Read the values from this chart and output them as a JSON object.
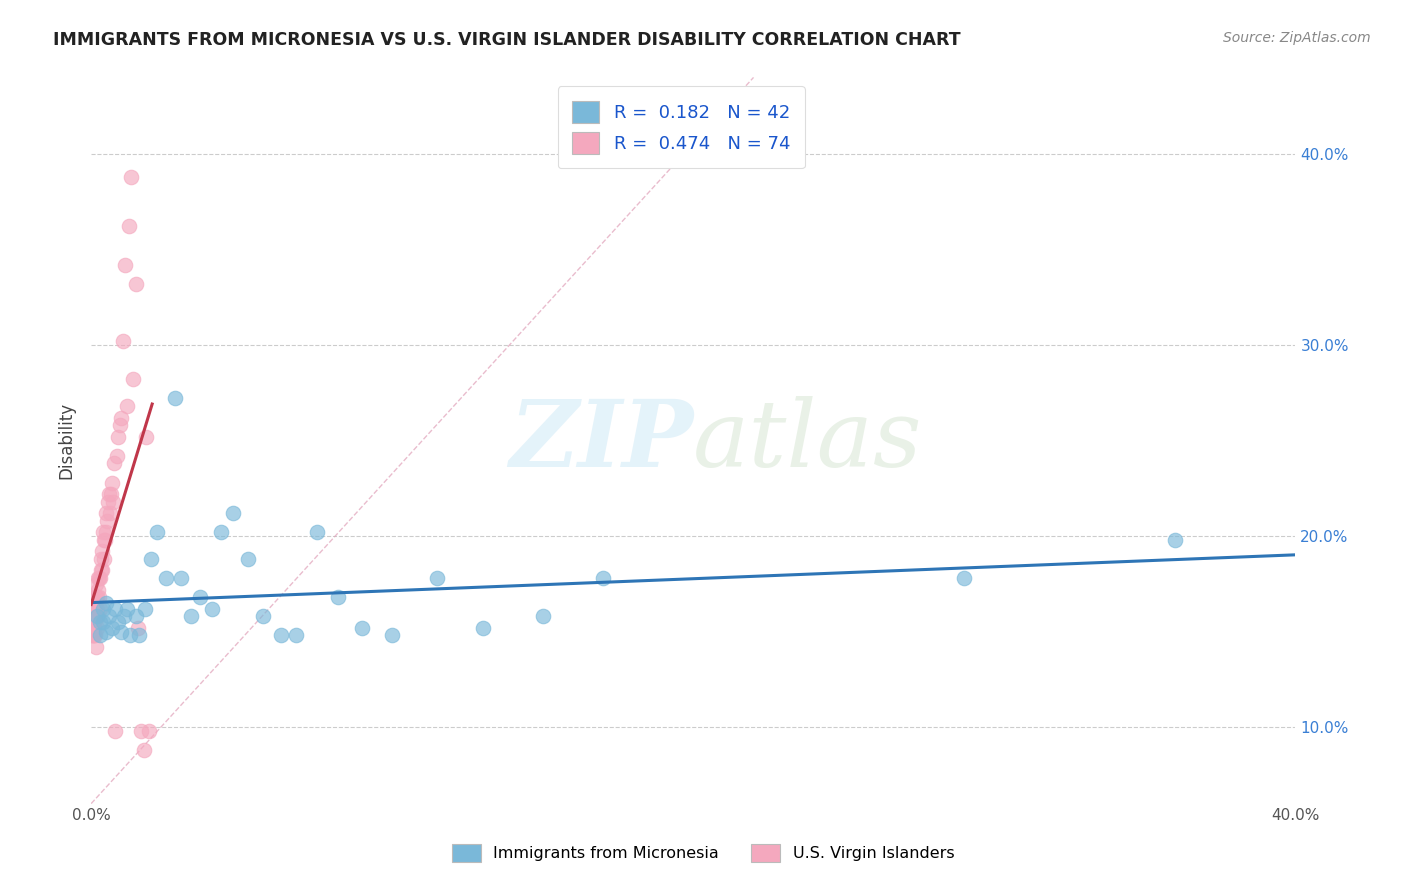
{
  "title": "IMMIGRANTS FROM MICRONESIA VS U.S. VIRGIN ISLANDER DISABILITY CORRELATION CHART",
  "source": "Source: ZipAtlas.com",
  "ylabel": "Disability",
  "xlim": [
    0.0,
    0.4
  ],
  "ylim": [
    0.06,
    0.44
  ],
  "xtick_positions": [
    0.0,
    0.4
  ],
  "xtick_labels": [
    "0.0%",
    "40.0%"
  ],
  "ytick_positions": [
    0.1,
    0.2,
    0.3,
    0.4
  ],
  "ytick_labels": [
    "10.0%",
    "20.0%",
    "30.0%",
    "40.0%"
  ],
  "grid_yticks": [
    0.1,
    0.15,
    0.2,
    0.25,
    0.3,
    0.35,
    0.4
  ],
  "legend_r1": "R =  0.182   N = 42",
  "legend_r2": "R =  0.474   N = 74",
  "blue_color": "#7ab8d9",
  "pink_color": "#f4a8be",
  "blue_line_color": "#2e75b6",
  "pink_line_color": "#c0374a",
  "diag_color": "#e8b4c0",
  "background_color": "#ffffff",
  "watermark_text": "ZIP",
  "watermark_text2": "atlas",
  "legend_label1": "Immigrants from Micronesia",
  "legend_label2": "U.S. Virgin Islanders",
  "blue_scatter_x": [
    0.002,
    0.003,
    0.003,
    0.004,
    0.004,
    0.005,
    0.005,
    0.006,
    0.007,
    0.008,
    0.009,
    0.01,
    0.011,
    0.012,
    0.013,
    0.015,
    0.016,
    0.018,
    0.02,
    0.022,
    0.025,
    0.028,
    0.03,
    0.033,
    0.036,
    0.04,
    0.043,
    0.047,
    0.052,
    0.057,
    0.063,
    0.068,
    0.075,
    0.082,
    0.09,
    0.1,
    0.115,
    0.13,
    0.15,
    0.17,
    0.29,
    0.36
  ],
  "blue_scatter_y": [
    0.158,
    0.148,
    0.155,
    0.162,
    0.155,
    0.15,
    0.165,
    0.158,
    0.152,
    0.162,
    0.155,
    0.15,
    0.158,
    0.162,
    0.148,
    0.158,
    0.148,
    0.162,
    0.188,
    0.202,
    0.178,
    0.272,
    0.178,
    0.158,
    0.168,
    0.162,
    0.202,
    0.212,
    0.188,
    0.158,
    0.148,
    0.148,
    0.202,
    0.168,
    0.152,
    0.148,
    0.178,
    0.152,
    0.158,
    0.178,
    0.178,
    0.198
  ],
  "pink_scatter_x": [
    0.0003,
    0.0003,
    0.0004,
    0.0004,
    0.0005,
    0.0005,
    0.0005,
    0.0006,
    0.0006,
    0.0007,
    0.0007,
    0.0008,
    0.0008,
    0.0009,
    0.0009,
    0.001,
    0.001,
    0.0011,
    0.0011,
    0.0012,
    0.0013,
    0.0013,
    0.0014,
    0.0015,
    0.0015,
    0.0016,
    0.0016,
    0.0017,
    0.0018,
    0.0019,
    0.002,
    0.0021,
    0.0022,
    0.0023,
    0.0024,
    0.0025,
    0.0027,
    0.0028,
    0.003,
    0.0032,
    0.0033,
    0.0035,
    0.0037,
    0.004,
    0.0042,
    0.0044,
    0.0046,
    0.0048,
    0.005,
    0.0053,
    0.0056,
    0.0059,
    0.0062,
    0.0065,
    0.0068,
    0.0072,
    0.0076,
    0.008,
    0.0085,
    0.009,
    0.0095,
    0.01,
    0.0106,
    0.0112,
    0.0118,
    0.0125,
    0.0132,
    0.014,
    0.0148,
    0.0156,
    0.0165,
    0.0174,
    0.0183,
    0.0193
  ],
  "pink_scatter_y": [
    0.148,
    0.155,
    0.158,
    0.162,
    0.155,
    0.148,
    0.165,
    0.158,
    0.162,
    0.148,
    0.155,
    0.162,
    0.155,
    0.148,
    0.158,
    0.162,
    0.152,
    0.168,
    0.158,
    0.162,
    0.148,
    0.158,
    0.165,
    0.158,
    0.162,
    0.168,
    0.175,
    0.142,
    0.158,
    0.162,
    0.168,
    0.152,
    0.172,
    0.178,
    0.158,
    0.178,
    0.168,
    0.162,
    0.178,
    0.188,
    0.182,
    0.192,
    0.182,
    0.202,
    0.198,
    0.188,
    0.198,
    0.202,
    0.212,
    0.208,
    0.218,
    0.222,
    0.212,
    0.222,
    0.228,
    0.218,
    0.238,
    0.098,
    0.242,
    0.252,
    0.258,
    0.262,
    0.302,
    0.342,
    0.268,
    0.362,
    0.388,
    0.282,
    0.332,
    0.152,
    0.098,
    0.088,
    0.252,
    0.098
  ]
}
